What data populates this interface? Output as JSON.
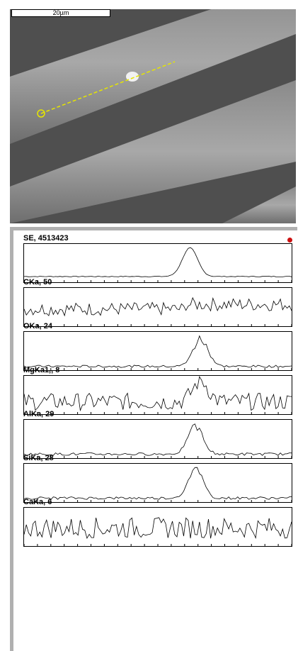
{
  "scale_bar_label": "20µm",
  "indicator_color": "#cc1111",
  "line_scan_color": "#e6e600",
  "chart_data": {
    "type": "line",
    "title": "",
    "x_points": 120,
    "series": [
      {
        "name": "SE, 4513423",
        "label": "SE, 4513423",
        "profile": "se",
        "peak_center": 0.62,
        "noise": 0.02
      },
      {
        "name": "CKa, 50",
        "label": "CKa, 50",
        "profile": "carbon",
        "peak_center": 0.62,
        "noise": 0.35
      },
      {
        "name": "OKa, 24",
        "label": "OKa, 24",
        "profile": "peak",
        "peak_center": 0.66,
        "noise": 0.06
      },
      {
        "name": "MgKa1,, 8",
        "label": "MgKa1,, 8",
        "profile": "noisy-peak",
        "peak_center": 0.66,
        "noise": 0.45
      },
      {
        "name": "AlKa, 29",
        "label": "AlKa, 29",
        "profile": "peak",
        "peak_center": 0.64,
        "noise": 0.07
      },
      {
        "name": "SiKa, 28",
        "label": "SiKa, 28",
        "profile": "peak",
        "peak_center": 0.64,
        "noise": 0.07
      },
      {
        "name": "CaKa, 6",
        "label": "CaKa, 6",
        "profile": "noise",
        "peak_center": 0.5,
        "noise": 0.55
      }
    ]
  }
}
